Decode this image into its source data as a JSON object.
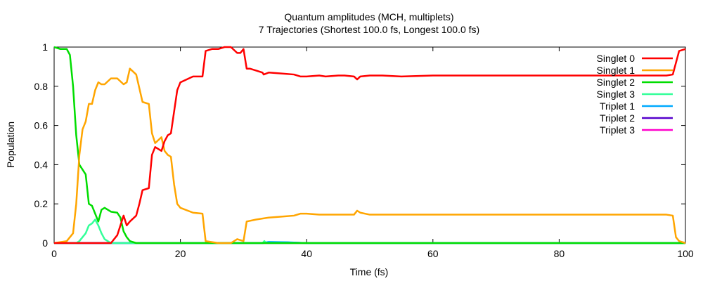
{
  "chart_data": {
    "type": "line",
    "title": "Quantum amplitudes (MCH, multiplets)",
    "subtitle": "7 Trajectories (Shortest 100.0 fs, Longest 100.0 fs)",
    "xlabel": "Time (fs)",
    "ylabel": "Population",
    "xlim": [
      0,
      100
    ],
    "ylim": [
      0,
      1
    ],
    "x_ticks": [
      0,
      20,
      40,
      60,
      80,
      100
    ],
    "y_ticks": [
      0,
      0.2,
      0.4,
      0.6,
      0.8,
      1
    ],
    "x_tick_labels": [
      "0",
      "20",
      "40",
      "60",
      "80",
      "100"
    ],
    "y_tick_labels": [
      "0",
      "0.2",
      "0.4",
      "0.6",
      "0.8",
      "1"
    ],
    "grid": false,
    "legend_position": "top-right",
    "series": [
      {
        "name": "Singlet 0",
        "color": "#ff0000",
        "points": [
          [
            0,
            0
          ],
          [
            9,
            0
          ],
          [
            10,
            0.04
          ],
          [
            11,
            0.14
          ],
          [
            11.5,
            0.09
          ],
          [
            12,
            0.11
          ],
          [
            13,
            0.14
          ],
          [
            13.5,
            0.2
          ],
          [
            14,
            0.27
          ],
          [
            15,
            0.28
          ],
          [
            15.5,
            0.45
          ],
          [
            16,
            0.49
          ],
          [
            17,
            0.47
          ],
          [
            17.5,
            0.52
          ],
          [
            18,
            0.55
          ],
          [
            18.5,
            0.56
          ],
          [
            19,
            0.67
          ],
          [
            19.5,
            0.78
          ],
          [
            20,
            0.82
          ],
          [
            22,
            0.85
          ],
          [
            23.5,
            0.85
          ],
          [
            24,
            0.98
          ],
          [
            25,
            0.99
          ],
          [
            26,
            0.99
          ],
          [
            27,
            1.0
          ],
          [
            28,
            1.0
          ],
          [
            29,
            0.97
          ],
          [
            29.5,
            0.97
          ],
          [
            30,
            0.99
          ],
          [
            30.5,
            0.89
          ],
          [
            31,
            0.89
          ],
          [
            32,
            0.88
          ],
          [
            33,
            0.87
          ],
          [
            33.2,
            0.86
          ],
          [
            34,
            0.87
          ],
          [
            36,
            0.865
          ],
          [
            38,
            0.86
          ],
          [
            39,
            0.85
          ],
          [
            40,
            0.85
          ],
          [
            42,
            0.855
          ],
          [
            43,
            0.85
          ],
          [
            45,
            0.855
          ],
          [
            46,
            0.855
          ],
          [
            47.5,
            0.85
          ],
          [
            48,
            0.835
          ],
          [
            48.5,
            0.85
          ],
          [
            50,
            0.855
          ],
          [
            52,
            0.855
          ],
          [
            55,
            0.85
          ],
          [
            60,
            0.855
          ],
          [
            70,
            0.855
          ],
          [
            80,
            0.855
          ],
          [
            90,
            0.855
          ],
          [
            97,
            0.855
          ],
          [
            98,
            0.86
          ],
          [
            99,
            0.98
          ],
          [
            100,
            0.99
          ]
        ]
      },
      {
        "name": "Singlet 1",
        "color": "#ffa500",
        "points": [
          [
            0,
            0
          ],
          [
            2,
            0.01
          ],
          [
            3,
            0.05
          ],
          [
            3.5,
            0.2
          ],
          [
            4,
            0.45
          ],
          [
            4.5,
            0.58
          ],
          [
            5,
            0.62
          ],
          [
            5.5,
            0.71
          ],
          [
            6,
            0.71
          ],
          [
            6.5,
            0.78
          ],
          [
            7,
            0.82
          ],
          [
            7.5,
            0.81
          ],
          [
            8,
            0.81
          ],
          [
            9,
            0.84
          ],
          [
            10,
            0.84
          ],
          [
            11,
            0.81
          ],
          [
            11.5,
            0.82
          ],
          [
            12,
            0.89
          ],
          [
            13,
            0.86
          ],
          [
            14,
            0.72
          ],
          [
            15,
            0.71
          ],
          [
            15.5,
            0.56
          ],
          [
            16,
            0.51
          ],
          [
            17,
            0.54
          ],
          [
            17.5,
            0.47
          ],
          [
            18,
            0.45
          ],
          [
            18.5,
            0.44
          ],
          [
            19,
            0.3
          ],
          [
            19.5,
            0.2
          ],
          [
            20,
            0.18
          ],
          [
            22,
            0.155
          ],
          [
            23.5,
            0.15
          ],
          [
            24,
            0.01
          ],
          [
            26,
            0
          ],
          [
            28,
            0
          ],
          [
            29,
            0.02
          ],
          [
            30,
            0.01
          ],
          [
            30.5,
            0.11
          ],
          [
            32,
            0.12
          ],
          [
            34,
            0.13
          ],
          [
            36,
            0.135
          ],
          [
            38,
            0.14
          ],
          [
            39,
            0.15
          ],
          [
            40,
            0.15
          ],
          [
            42,
            0.145
          ],
          [
            45,
            0.145
          ],
          [
            47.5,
            0.145
          ],
          [
            48,
            0.165
          ],
          [
            48.5,
            0.155
          ],
          [
            50,
            0.145
          ],
          [
            55,
            0.145
          ],
          [
            60,
            0.145
          ],
          [
            70,
            0.145
          ],
          [
            80,
            0.145
          ],
          [
            90,
            0.145
          ],
          [
            97,
            0.145
          ],
          [
            98,
            0.14
          ],
          [
            98.5,
            0.03
          ],
          [
            99,
            0.01
          ],
          [
            100,
            0
          ]
        ]
      },
      {
        "name": "Singlet 2",
        "color": "#00dd00",
        "points": [
          [
            0,
            1.0
          ],
          [
            1,
            0.99
          ],
          [
            2,
            0.99
          ],
          [
            2.5,
            0.96
          ],
          [
            3,
            0.8
          ],
          [
            3.5,
            0.55
          ],
          [
            4,
            0.4
          ],
          [
            5,
            0.35
          ],
          [
            5.5,
            0.2
          ],
          [
            6,
            0.19
          ],
          [
            7,
            0.11
          ],
          [
            7.5,
            0.17
          ],
          [
            8,
            0.18
          ],
          [
            9,
            0.16
          ],
          [
            10,
            0.155
          ],
          [
            10.5,
            0.13
          ],
          [
            11,
            0.06
          ],
          [
            11.5,
            0.03
          ],
          [
            12,
            0.01
          ],
          [
            13,
            0
          ],
          [
            20,
            0
          ],
          [
            40,
            0
          ],
          [
            60,
            0
          ],
          [
            80,
            0
          ],
          [
            100,
            0
          ]
        ]
      },
      {
        "name": "Singlet 3",
        "color": "#33ff99",
        "points": [
          [
            0,
            0
          ],
          [
            3.5,
            0
          ],
          [
            4,
            0.01
          ],
          [
            5,
            0.05
          ],
          [
            5.5,
            0.09
          ],
          [
            6,
            0.1
          ],
          [
            6.5,
            0.12
          ],
          [
            7,
            0.09
          ],
          [
            7.5,
            0.05
          ],
          [
            8,
            0.02
          ],
          [
            9,
            0
          ],
          [
            20,
            0
          ],
          [
            33,
            0
          ],
          [
            33.3,
            0.01
          ],
          [
            33.6,
            0
          ],
          [
            100,
            0
          ]
        ]
      },
      {
        "name": "Triplet 1",
        "color": "#00aaff",
        "points": [
          [
            0,
            0
          ],
          [
            33,
            0
          ],
          [
            34,
            0.006
          ],
          [
            37,
            0.004
          ],
          [
            40,
            0
          ],
          [
            100,
            0
          ]
        ]
      },
      {
        "name": "Triplet 2",
        "color": "#5500cc",
        "points": [
          [
            0,
            0
          ],
          [
            33,
            0
          ],
          [
            34,
            0.004
          ],
          [
            37,
            0.003
          ],
          [
            40,
            0
          ],
          [
            100,
            0
          ]
        ]
      },
      {
        "name": "Triplet 3",
        "color": "#ff00cc",
        "points": [
          [
            0,
            0
          ],
          [
            100,
            0
          ]
        ]
      }
    ]
  }
}
